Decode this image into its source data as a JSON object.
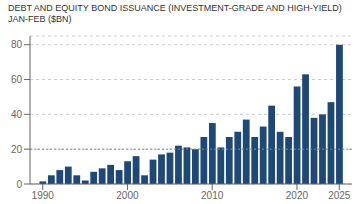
{
  "chart_data": {
    "type": "bar",
    "title": "DEBT AND EQUITY BOND ISSUANCE (INVESTMENT-GRADE AND HIGH-YIELD) JAN-FEB ($BN)",
    "x": [
      1990,
      1991,
      1992,
      1993,
      1994,
      1995,
      1996,
      1997,
      1998,
      1999,
      2000,
      2001,
      2002,
      2003,
      2004,
      2005,
      2006,
      2007,
      2008,
      2009,
      2010,
      2011,
      2012,
      2013,
      2014,
      2015,
      2016,
      2017,
      2018,
      2019,
      2020,
      2021,
      2022,
      2023,
      2024,
      2025
    ],
    "values": [
      1.5,
      5,
      8,
      10,
      5,
      2,
      7,
      9,
      11,
      8,
      13,
      16,
      5,
      14,
      17,
      18,
      22,
      21,
      20,
      27,
      35,
      21,
      27,
      30,
      37,
      27,
      33,
      45,
      30,
      27,
      56,
      63,
      38,
      40,
      47,
      80
    ],
    "color": "#1e4976",
    "xlim": [
      1988.5,
      2026.5
    ],
    "xticks": [
      1990,
      2000,
      2010,
      2020,
      2025
    ],
    "ylim": [
      0,
      85
    ],
    "yticks": [
      0,
      20,
      40,
      60,
      80
    ],
    "grid": true,
    "reference_line_y": 20
  }
}
